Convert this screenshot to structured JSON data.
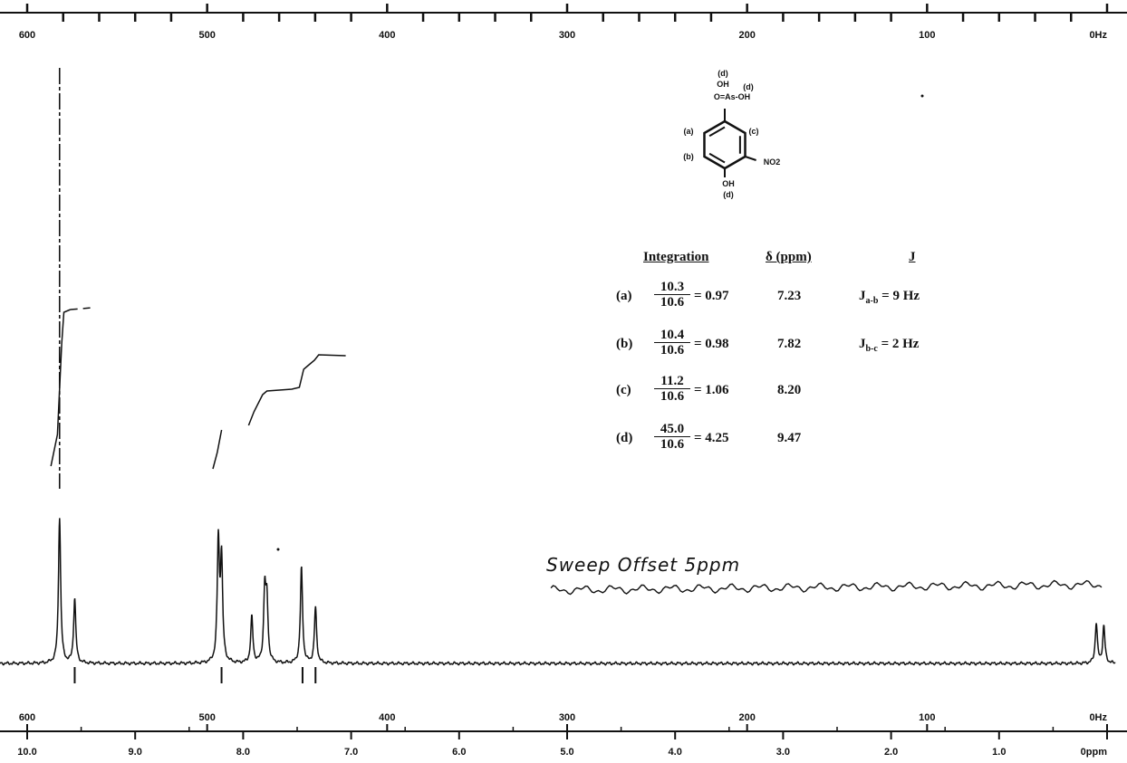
{
  "chart_data": {
    "type": "line",
    "title": "",
    "top_axis": {
      "ticks": [
        {
          "value": 600,
          "label": "600"
        },
        {
          "value": 500,
          "label": "500"
        },
        {
          "value": 400,
          "label": "400"
        },
        {
          "value": 300,
          "label": "300"
        },
        {
          "value": 200,
          "label": "200"
        },
        {
          "value": 100,
          "label": "100"
        },
        {
          "value": 0,
          "label": "0Hz"
        }
      ]
    },
    "bottom_hz_axis": {
      "ticks": [
        {
          "value": 600,
          "label": "600"
        },
        {
          "value": 500,
          "label": "500"
        },
        {
          "value": 400,
          "label": "400"
        },
        {
          "value": 300,
          "label": "300"
        },
        {
          "value": 200,
          "label": "200"
        },
        {
          "value": 100,
          "label": "100"
        },
        {
          "value": 0,
          "label": "0Hz"
        }
      ]
    },
    "bottom_ppm_axis": {
      "ticks": [
        {
          "value": 10.0,
          "label": "10.0"
        },
        {
          "value": 9.0,
          "label": "9.0"
        },
        {
          "value": 8.0,
          "label": "8.0"
        },
        {
          "value": 7.0,
          "label": "7.0"
        },
        {
          "value": 6.0,
          "label": "6.0"
        },
        {
          "value": 5.0,
          "label": "5.0"
        },
        {
          "value": 4.0,
          "label": "4.0"
        },
        {
          "value": 3.0,
          "label": "3.0"
        },
        {
          "value": 2.0,
          "label": "2.0"
        },
        {
          "value": 1.0,
          "label": "1.0"
        },
        {
          "value": 0,
          "label": "0ppm"
        }
      ]
    },
    "hz_range": [
      600,
      0
    ],
    "ppm_range": [
      10.0,
      0
    ],
    "peaks": [
      {
        "ppm": 9.7,
        "height": 0.95
      },
      {
        "ppm": 9.56,
        "height": 0.42
      },
      {
        "ppm": 8.23,
        "height": 0.78
      },
      {
        "ppm": 8.2,
        "height": 0.66
      },
      {
        "ppm": 7.92,
        "height": 0.3
      },
      {
        "ppm": 7.8,
        "height": 0.46
      },
      {
        "ppm": 7.78,
        "height": 0.38
      },
      {
        "ppm": 7.46,
        "height": 0.62
      },
      {
        "ppm": 7.33,
        "height": 0.36
      },
      {
        "ppm": 0.1,
        "height": 0.26
      },
      {
        "ppm": 0.03,
        "height": 0.24
      }
    ],
    "sweep_offset_text": "Sweep Offset 5ppm",
    "molecule_labels": [
      "(d)",
      "OH",
      "(d)",
      "O=As-OH",
      "(a)",
      "(c)",
      "(b)",
      "NO2",
      "OH",
      "(d)"
    ],
    "table": {
      "headers": [
        "Integration",
        "δ (ppm)",
        "J"
      ],
      "rows": [
        {
          "label": "(a)",
          "num": "10.3",
          "den": "10.6",
          "ratio": "= 0.97",
          "shift": "7.23",
          "j_main": "J",
          "j_sub": "a-b",
          "j_value": "= 9 Hz"
        },
        {
          "label": "(b)",
          "num": "10.4",
          "den": "10.6",
          "ratio": "= 0.98",
          "shift": "7.82",
          "j_main": "J",
          "j_sub": "b-c",
          "j_value": "= 2 Hz"
        },
        {
          "label": "(c)",
          "num": "11.2",
          "den": "10.6",
          "ratio": "= 1.06",
          "shift": "8.20",
          "j_main": "",
          "j_sub": "",
          "j_value": ""
        },
        {
          "label": "(d)",
          "num": "45.0",
          "den": "10.6",
          "ratio": "= 4.25",
          "shift": "9.47",
          "j_main": "",
          "j_sub": "",
          "j_value": ""
        }
      ]
    },
    "line_color": "#111111"
  }
}
